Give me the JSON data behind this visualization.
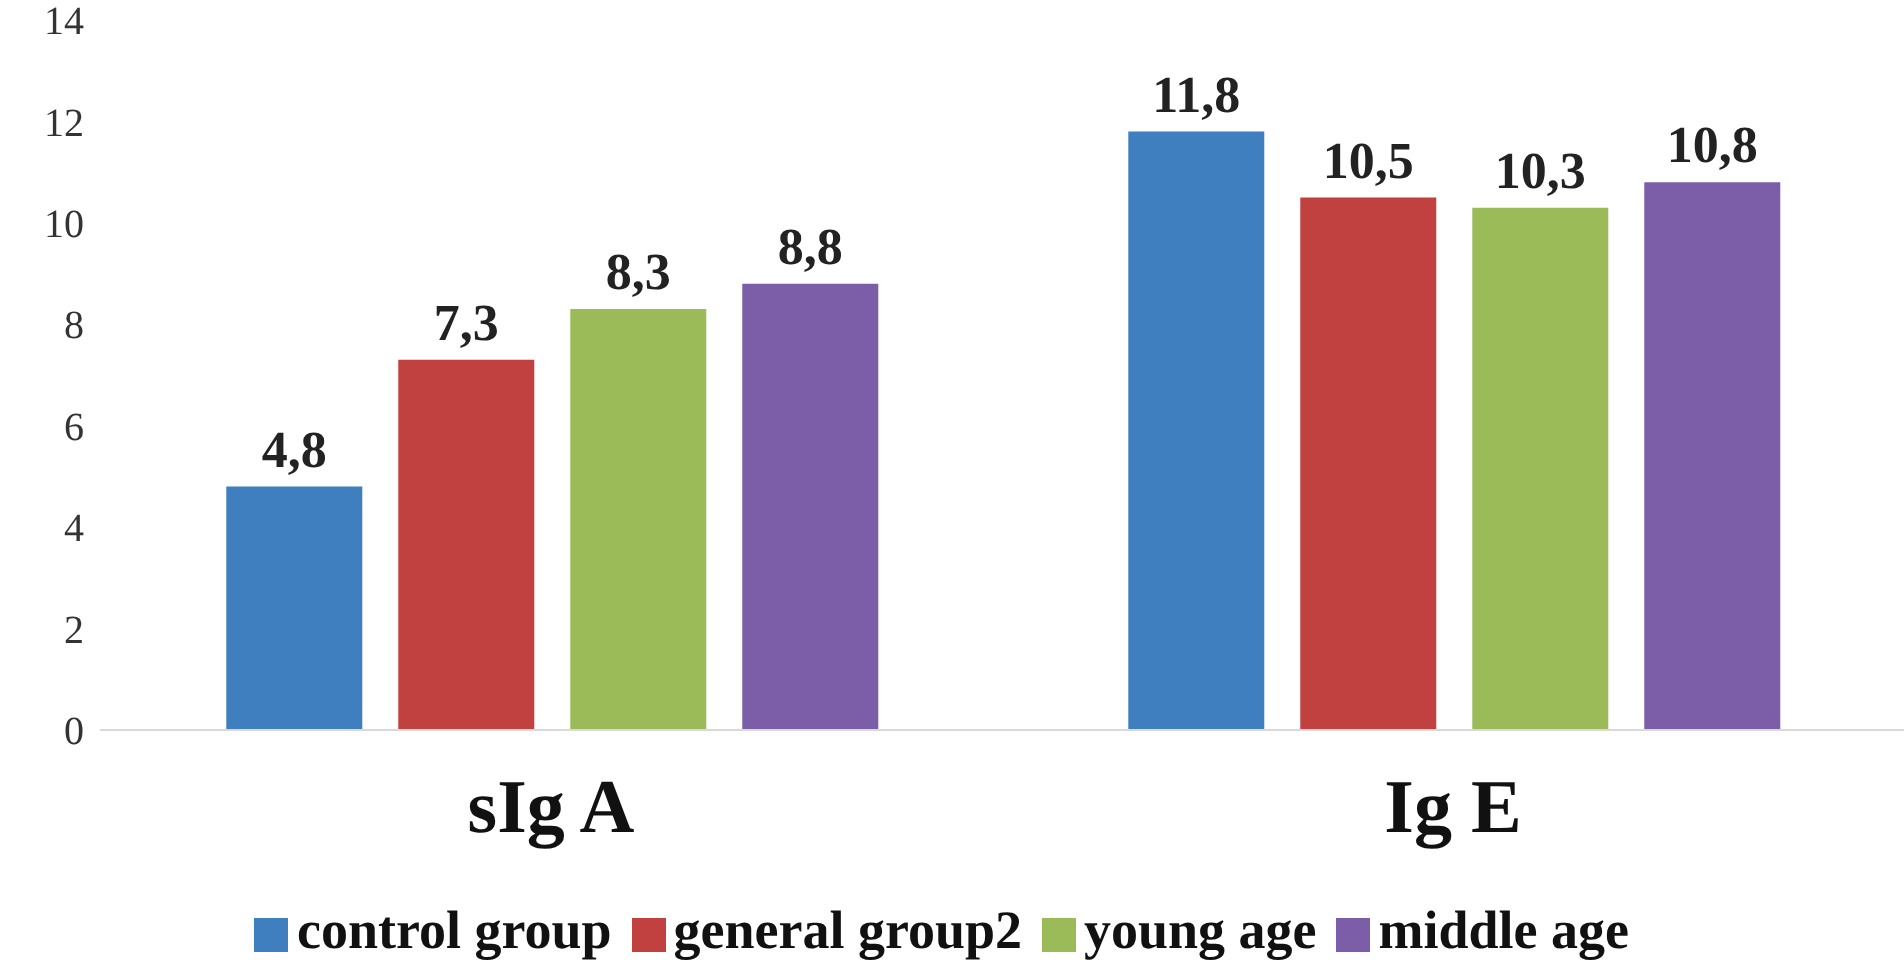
{
  "chart_data": {
    "type": "bar",
    "categories": [
      "sIg A",
      "Ig E"
    ],
    "series": [
      {
        "name": "control group",
        "color": "#3f7ebf",
        "values": [
          4.8,
          11.8
        ],
        "value_labels": [
          "4,8",
          "11,8"
        ]
      },
      {
        "name": "general group2",
        "color": "#c0413f",
        "values": [
          7.3,
          10.5
        ],
        "value_labels": [
          "7,3",
          "10,5"
        ]
      },
      {
        "name": "young age",
        "color": "#9bbb59",
        "values": [
          8.3,
          10.3
        ],
        "value_labels": [
          "8,3",
          "10,3"
        ]
      },
      {
        "name": "middle age",
        "color": "#7b5ea7",
        "values": [
          8.8,
          10.8
        ],
        "value_labels": [
          "8,8",
          "10,8"
        ]
      }
    ],
    "ylim": [
      0,
      14
    ],
    "yticks": [
      0,
      2,
      4,
      6,
      8,
      10,
      12,
      14
    ],
    "grid": false,
    "legend": "bottom"
  }
}
